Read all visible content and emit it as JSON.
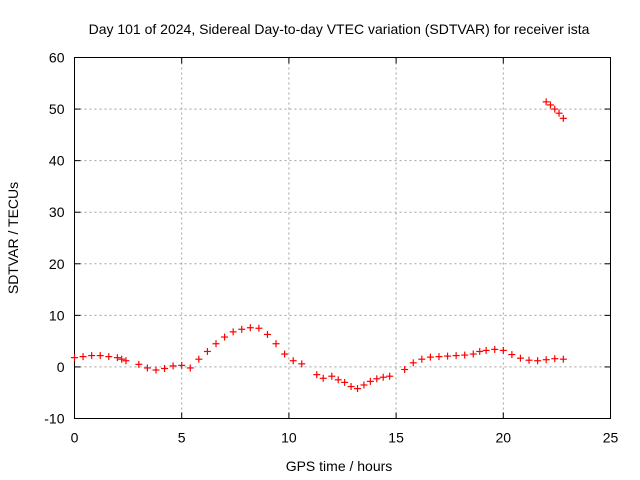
{
  "chart_data": {
    "type": "scatter",
    "title": "Day 101 of 2024, Sidereal Day-to-day VTEC variation (SDTVAR) for receiver ista",
    "xlabel": "GPS time / hours",
    "ylabel": "SDTVAR / TECUs",
    "xlim": [
      0,
      25
    ],
    "ylim": [
      -10,
      60
    ],
    "xticks": [
      "0",
      "5",
      "10",
      "15",
      "20",
      "25"
    ],
    "yticks": [
      "-10",
      "0",
      "10",
      "20",
      "30",
      "40",
      "50",
      "60"
    ],
    "grid": true,
    "marker": "+",
    "color": "#ff0000",
    "series": [
      {
        "name": "SDTVAR",
        "x": [
          0.0,
          0.4,
          0.8,
          1.2,
          1.6,
          2.0,
          2.2,
          2.4,
          3.0,
          3.4,
          3.8,
          4.2,
          4.6,
          5.0,
          5.4,
          5.8,
          6.2,
          6.6,
          7.0,
          7.4,
          7.8,
          8.2,
          8.6,
          9.0,
          9.4,
          9.8,
          10.2,
          10.6,
          11.3,
          11.6,
          12.0,
          12.3,
          12.6,
          12.9,
          13.2,
          13.5,
          13.8,
          14.1,
          14.4,
          14.7,
          15.4,
          15.8,
          16.2,
          16.6,
          17.0,
          17.4,
          17.8,
          18.2,
          18.6,
          18.9,
          19.2,
          19.6,
          20.0,
          20.4,
          20.8,
          21.2,
          21.6,
          22.0,
          22.4,
          22.8,
          22.0,
          22.2,
          22.4,
          22.6,
          22.8
        ],
        "y": [
          1.8,
          2.0,
          2.2,
          2.2,
          2.0,
          1.8,
          1.5,
          1.2,
          0.5,
          -0.2,
          -0.6,
          -0.3,
          0.2,
          0.3,
          -0.2,
          1.5,
          3.0,
          4.5,
          5.8,
          6.8,
          7.3,
          7.6,
          7.5,
          6.3,
          4.5,
          2.5,
          1.2,
          0.6,
          -1.5,
          -2.2,
          -1.8,
          -2.5,
          -3.0,
          -3.8,
          -4.2,
          -3.5,
          -2.8,
          -2.3,
          -2.0,
          -1.8,
          -0.5,
          0.8,
          1.5,
          1.9,
          2.0,
          2.1,
          2.2,
          2.3,
          2.5,
          3.0,
          3.2,
          3.4,
          3.2,
          2.4,
          1.7,
          1.3,
          1.2,
          1.4,
          1.6,
          1.5,
          51.4,
          50.8,
          50.0,
          49.2,
          48.2
        ]
      }
    ]
  }
}
